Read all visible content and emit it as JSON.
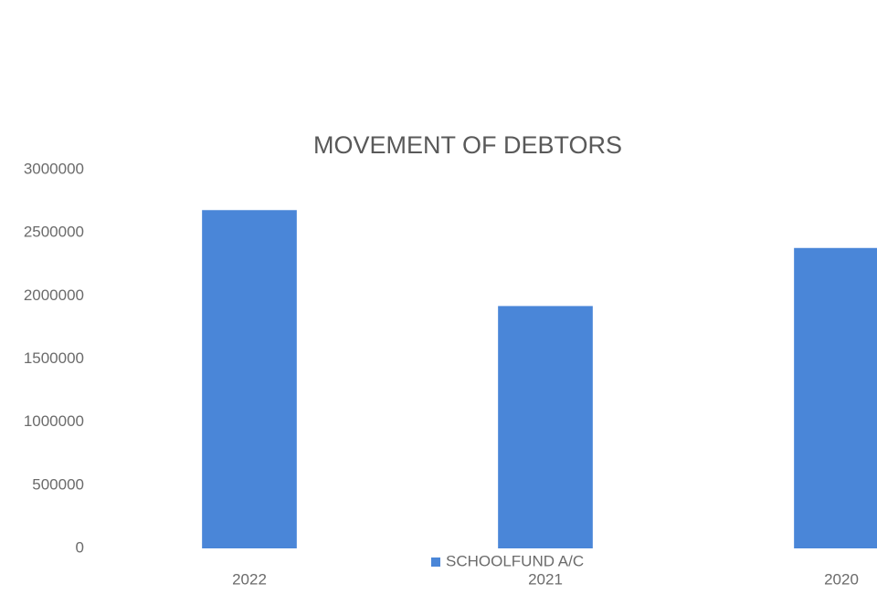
{
  "chart_data": {
    "type": "bar",
    "title": "MOVEMENT OF DEBTORS",
    "categories": [
      "2022",
      "2021",
      "2020"
    ],
    "series": [
      {
        "name": "SCHOOLFUND A/C",
        "color": "#4a86d8",
        "values": [
          2680000,
          1920000,
          2380000
        ]
      }
    ],
    "ylim": [
      0,
      3000000
    ],
    "yticks": [
      0,
      500000,
      1000000,
      1500000,
      2000000,
      2500000,
      3000000
    ],
    "grid": false,
    "legend": "bottom"
  }
}
